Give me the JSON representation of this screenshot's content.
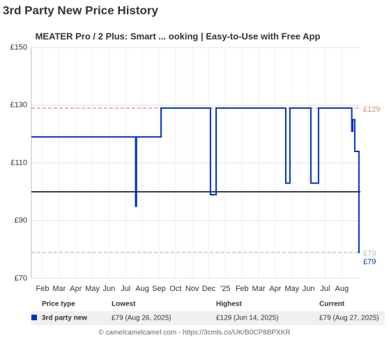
{
  "header": {
    "title": "3rd Party New Price History"
  },
  "chart_data": {
    "type": "line",
    "title": "MEATER Pro / 2 Plus: Smart ... ooking | Easy-to-Use with Free App",
    "x": [
      0.33,
      6.6,
      6.6,
      6.65,
      6.65,
      8.13,
      8.13,
      11.1,
      11.1,
      11.44,
      11.44,
      15.63,
      15.63,
      15.88,
      15.88,
      17.14,
      17.14,
      17.6,
      17.6,
      19.6,
      19.6,
      19.66,
      19.66,
      19.78,
      19.78,
      20.03,
      20.03,
      20.08
    ],
    "series": [
      {
        "name": "3rd party new",
        "color": "#0033bb",
        "end_label": "£79",
        "values": [
          119,
          119,
          95,
          95,
          119,
          119,
          129,
          129,
          99,
          99,
          129,
          129,
          103,
          103,
          129,
          129,
          103,
          103,
          129,
          129,
          121,
          121,
          125,
          125,
          114,
          114,
          79,
          79
        ]
      }
    ],
    "reference_lines": [
      {
        "value": 129,
        "label": "£129",
        "color": "#d98a86"
      },
      {
        "value": 79,
        "label": "£79",
        "color": "#9ccf9c"
      },
      {
        "value": 100,
        "color": "#000000"
      }
    ],
    "xlim": [
      0.33,
      20.12
    ],
    "xticks": [
      {
        "value": 1,
        "label": "Feb"
      },
      {
        "value": 2,
        "label": "Mar"
      },
      {
        "value": 3,
        "label": "Apr"
      },
      {
        "value": 4,
        "label": "May"
      },
      {
        "value": 5,
        "label": "Jun"
      },
      {
        "value": 6,
        "label": "Jul"
      },
      {
        "value": 7,
        "label": "Aug"
      },
      {
        "value": 8,
        "label": "Sep"
      },
      {
        "value": 9,
        "label": "Oct"
      },
      {
        "value": 10,
        "label": "Nov"
      },
      {
        "value": 11,
        "label": "Dec"
      },
      {
        "value": 12,
        "label": "'25"
      },
      {
        "value": 13,
        "label": "Feb"
      },
      {
        "value": 14,
        "label": "Mar"
      },
      {
        "value": 15,
        "label": "Apr"
      },
      {
        "value": 16,
        "label": "May"
      },
      {
        "value": 17,
        "label": "Jun"
      },
      {
        "value": 18,
        "label": "Jul"
      },
      {
        "value": 19,
        "label": "Aug"
      }
    ],
    "ylim": [
      70,
      150
    ],
    "yticks": [
      {
        "value": 70,
        "label": "£70"
      },
      {
        "value": 90,
        "label": "£90"
      },
      {
        "value": 110,
        "label": "£110"
      },
      {
        "value": 130,
        "label": "£130"
      },
      {
        "value": 150,
        "label": "£150"
      }
    ],
    "grid": true
  },
  "table": {
    "header": [
      "Price type",
      "Lowest",
      "Highest",
      "Current"
    ],
    "rows": [
      [
        "3rd party new",
        "£79 (Aug 26, 2025)",
        "£129 (Jun 14, 2025)",
        "£79 (Aug 27, 2025)"
      ]
    ]
  },
  "footer": "© camelcamelcamel.com - https://3cmls.co/UK/B0CP8BPXKR"
}
